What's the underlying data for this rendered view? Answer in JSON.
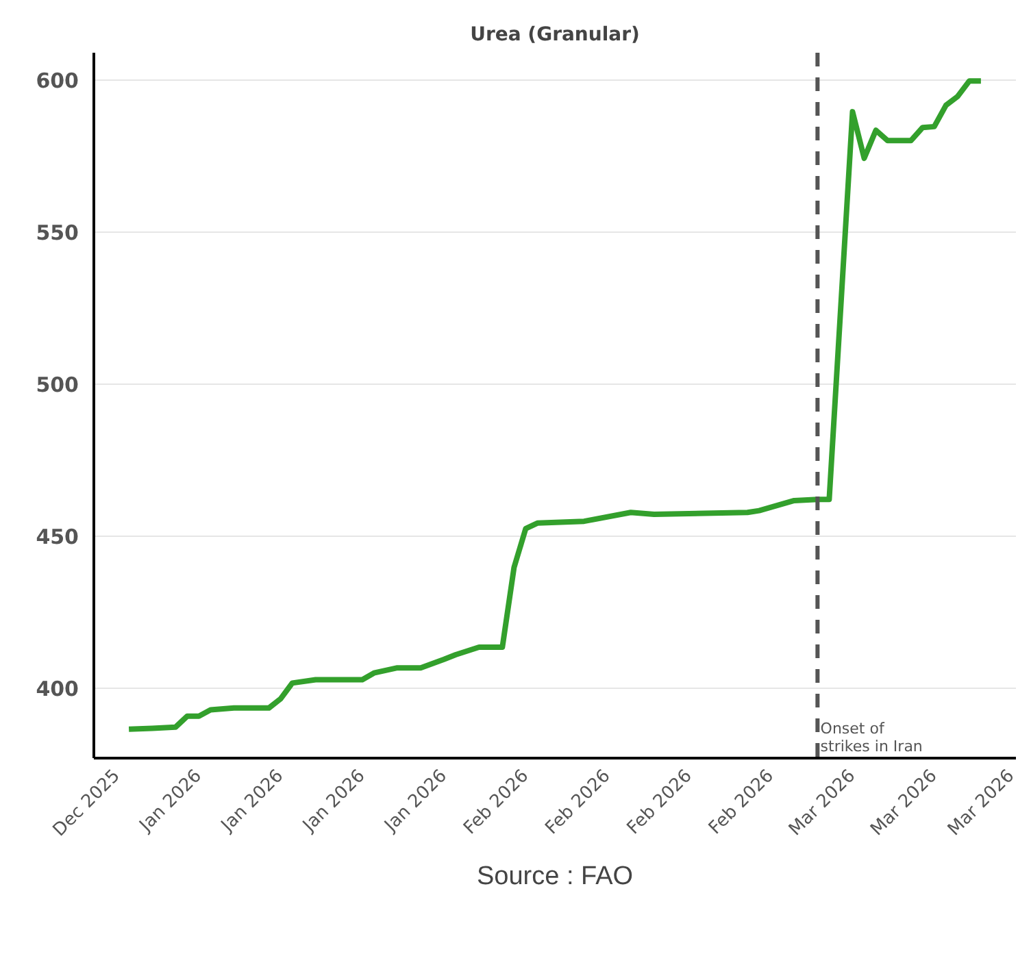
{
  "chart_data": {
    "type": "line",
    "title": "Urea (Granular)",
    "x": [
      "2025-12-30",
      "2026-01-01",
      "2026-01-03",
      "2026-01-04",
      "2026-01-05",
      "2026-01-06",
      "2026-01-08",
      "2026-01-11",
      "2026-01-12",
      "2026-01-13",
      "2026-01-15",
      "2026-01-19",
      "2026-01-20",
      "2026-01-22",
      "2026-01-24",
      "2026-01-26",
      "2026-01-27",
      "2026-01-29",
      "2026-01-31",
      "2026-02-01",
      "2026-02-02",
      "2026-02-03",
      "2026-02-07",
      "2026-02-11",
      "2026-02-13",
      "2026-02-21",
      "2026-02-22",
      "2026-02-25",
      "2026-02-27",
      "2026-02-28",
      "2026-03-02",
      "2026-03-03",
      "2026-03-04",
      "2026-03-05",
      "2026-03-07",
      "2026-03-08",
      "2026-03-09",
      "2026-03-10",
      "2026-03-11",
      "2026-03-12",
      "2026-03-13"
    ],
    "series": [
      {
        "color": "#33a02c",
        "values": [
          386.5,
          386.8,
          387.2,
          390.8,
          390.8,
          392.9,
          393.5,
          393.5,
          396.5,
          401.7,
          402.8,
          402.8,
          405,
          406.7,
          406.7,
          409.5,
          411,
          413.5,
          413.5,
          439.7,
          452.5,
          454.3,
          454.9,
          457.8,
          457.2,
          457.8,
          458.4,
          461.7,
          462.1,
          462.1,
          589.6,
          574.3,
          583.5,
          580.1,
          580.1,
          584.4,
          584.7,
          591.7,
          594.6,
          599.7,
          599.7
        ]
      }
    ],
    "xlim": [
      "2025-12-27",
      "2026-03-16"
    ],
    "xticks": [
      {
        "value": "2025-12-29",
        "label": "Dec 2025"
      },
      {
        "value": "2026-01-05",
        "label": "Jan 2026"
      },
      {
        "value": "2026-01-12",
        "label": "Jan 2026"
      },
      {
        "value": "2026-01-19",
        "label": "Jan 2026"
      },
      {
        "value": "2026-01-26",
        "label": "Jan 2026"
      },
      {
        "value": "2026-02-02",
        "label": "Feb 2026"
      },
      {
        "value": "2026-02-09",
        "label": "Feb 2026"
      },
      {
        "value": "2026-02-16",
        "label": "Feb 2026"
      },
      {
        "value": "2026-02-23",
        "label": "Feb 2026"
      },
      {
        "value": "2026-03-02",
        "label": "Mar 2026"
      },
      {
        "value": "2026-03-09",
        "label": "Mar 2026"
      },
      {
        "value": "2026-03-16",
        "label": "Mar 2026"
      }
    ],
    "ylim": [
      377,
      609
    ],
    "yticks": [
      400,
      450,
      500,
      550,
      600
    ],
    "grid": "y",
    "line_style": "solid",
    "ref_lines": [
      {
        "axis": "x",
        "value": "2026-02-27",
        "label": "Onset of strikes in Iran",
        "color": "#555555",
        "line_style": "dashed"
      }
    ],
    "annotations": [
      "Source : FAO"
    ]
  }
}
